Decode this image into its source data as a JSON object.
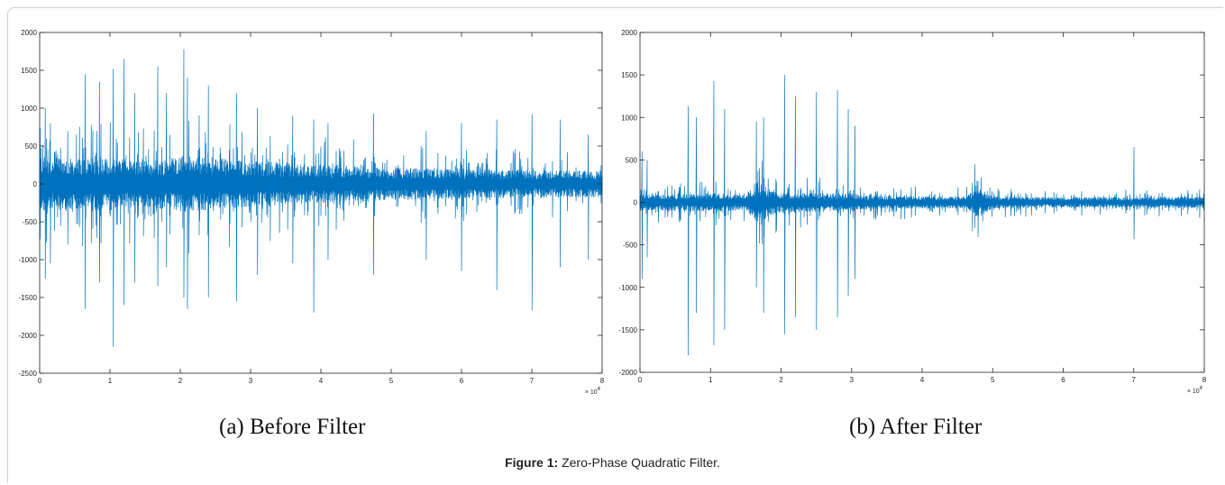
{
  "figure": {
    "caption_label": "Figure 1:",
    "caption_text": " Zero-Phase Quadratic Filter."
  },
  "panels": [
    {
      "label": "(a)",
      "title": "Before Filter"
    },
    {
      "label": "(b)",
      "title": "After Filter"
    }
  ],
  "colors": {
    "signal": "#0072BD",
    "axis": "#262626",
    "frame_border": "#d0d0d0"
  },
  "chart_data": [
    {
      "type": "line",
      "title": "",
      "xlabel": "",
      "ylabel": "",
      "x_exponent": "× 10",
      "x_exponent_power": "4",
      "xlim": [
        0,
        80000
      ],
      "ylim": [
        -2500,
        2000
      ],
      "xticks": [
        0,
        10000,
        20000,
        30000,
        40000,
        50000,
        60000,
        70000,
        80000
      ],
      "xtick_labels": [
        "0",
        "1",
        "2",
        "3",
        "4",
        "5",
        "6",
        "7",
        "8"
      ],
      "yticks": [
        -2500,
        -2000,
        -1500,
        -1000,
        -500,
        0,
        500,
        1000,
        1500,
        2000
      ],
      "ytick_labels": [
        "-2500",
        "-2000",
        "-1500",
        "-1000",
        "-500",
        "0",
        "500",
        "1000",
        "1500",
        "2000"
      ],
      "grid": false,
      "series": [
        {
          "baseline": 0,
          "envelope": {
            "x": [
              0,
              5000,
              10000,
              15000,
              20000,
              25000,
              30000,
              40000,
              50000,
              60000,
              70000,
              80000
            ],
            "amplitude": [
              300,
              280,
              300,
              250,
              320,
              280,
              260,
              210,
              180,
              160,
              150,
              150
            ]
          },
          "spikes": [
            [
              800,
              1000,
              -1250
            ],
            [
              1500,
              800,
              -1050
            ],
            [
              4000,
              700,
              -800
            ],
            [
              6500,
              1450,
              -1650
            ],
            [
              8500,
              1350,
              -1300
            ],
            [
              10500,
              1520,
              -2150
            ],
            [
              12000,
              1650,
              -1600
            ],
            [
              13500,
              1200,
              -1300
            ],
            [
              16800,
              1550,
              -1350
            ],
            [
              18000,
              1200,
              -1100
            ],
            [
              20500,
              1780,
              -1500
            ],
            [
              21000,
              1400,
              -1650
            ],
            [
              24000,
              1300,
              -1500
            ],
            [
              28000,
              1200,
              -1550
            ],
            [
              31000,
              1000,
              -1200
            ],
            [
              36000,
              900,
              -1050
            ],
            [
              39000,
              850,
              -1700
            ],
            [
              41000,
              800,
              -1000
            ],
            [
              47500,
              930,
              -1200
            ],
            [
              55000,
              700,
              -1000
            ],
            [
              60000,
              800,
              -1150
            ],
            [
              65000,
              850,
              -1400
            ],
            [
              70000,
              920,
              -1670
            ],
            [
              74000,
              850,
              -1100
            ],
            [
              78000,
              650,
              -1000
            ]
          ]
        }
      ]
    },
    {
      "type": "line",
      "title": "",
      "xlabel": "",
      "ylabel": "",
      "x_exponent": "× 10",
      "x_exponent_power": "4",
      "xlim": [
        0,
        80000
      ],
      "ylim": [
        -2000,
        2000
      ],
      "xticks": [
        0,
        10000,
        20000,
        30000,
        40000,
        50000,
        60000,
        70000,
        80000
      ],
      "xtick_labels": [
        "0",
        "1",
        "2",
        "3",
        "4",
        "5",
        "6",
        "7",
        "8"
      ],
      "yticks": [
        -2000,
        -1500,
        -1000,
        -500,
        0,
        500,
        1000,
        1500,
        2000
      ],
      "ytick_labels": [
        "-2000",
        "-1500",
        "-1000",
        "-500",
        "0",
        "500",
        "1000",
        "1500",
        "2000"
      ],
      "grid": false,
      "series": [
        {
          "baseline": 0,
          "envelope": {
            "x": [
              0,
              5000,
              10000,
              15000,
              16500,
              20000,
              30000,
              32000,
              40000,
              46000,
              48000,
              50000,
              60000,
              70000,
              80000
            ],
            "amplitude": [
              80,
              80,
              90,
              80,
              200,
              100,
              90,
              70,
              60,
              60,
              150,
              60,
              50,
              50,
              60
            ]
          },
          "spikes": [
            [
              300,
              600,
              -900
            ],
            [
              1000,
              500,
              -650
            ],
            [
              6800,
              1130,
              -1800
            ],
            [
              8000,
              1000,
              -1300
            ],
            [
              10500,
              1430,
              -1680
            ],
            [
              12000,
              1100,
              -1500
            ],
            [
              16500,
              950,
              -1000
            ],
            [
              17500,
              1000,
              -1300
            ],
            [
              20500,
              1500,
              -1550
            ],
            [
              22000,
              1250,
              -1350
            ],
            [
              25000,
              1300,
              -1500
            ],
            [
              28000,
              1320,
              -1350
            ],
            [
              29500,
              1100,
              -1100
            ],
            [
              30500,
              900,
              -900
            ],
            [
              37000,
              150,
              -200
            ],
            [
              47500,
              450,
              -300
            ],
            [
              70000,
              650,
              -430
            ]
          ]
        }
      ]
    }
  ]
}
